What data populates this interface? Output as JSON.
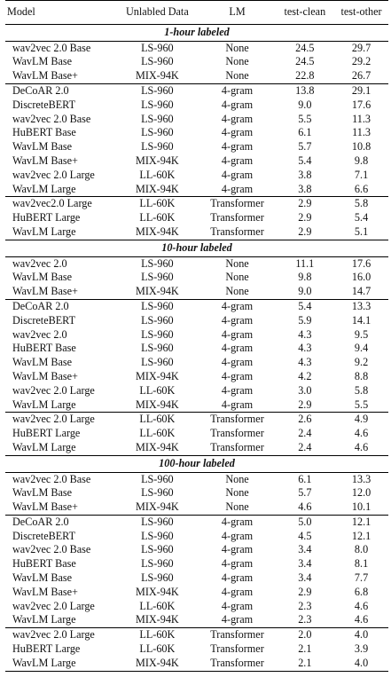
{
  "columns": {
    "model": "Model",
    "data": "Unlabled Data",
    "lm": "LM",
    "clean": "test-clean",
    "other": "test-other"
  },
  "sections": [
    {
      "title": "1-hour labeled",
      "groups": [
        [
          {
            "model": "wav2vec 2.0 Base",
            "data": "LS-960",
            "lm": "None",
            "clean": "24.5",
            "other": "29.7"
          },
          {
            "model": "WavLM Base",
            "data": "LS-960",
            "lm": "None",
            "clean": "24.5",
            "other": "29.2"
          },
          {
            "model": "WavLM Base+",
            "data": "MIX-94K",
            "lm": "None",
            "clean": "22.8",
            "other": "26.7"
          }
        ],
        [
          {
            "model": "DeCoAR 2.0",
            "data": "LS-960",
            "lm": "4-gram",
            "clean": "13.8",
            "other": "29.1"
          },
          {
            "model": "DiscreteBERT",
            "data": "LS-960",
            "lm": "4-gram",
            "clean": "9.0",
            "other": "17.6"
          },
          {
            "model": "wav2vec 2.0 Base",
            "data": "LS-960",
            "lm": "4-gram",
            "clean": "5.5",
            "other": "11.3"
          },
          {
            "model": "HuBERT Base",
            "data": "LS-960",
            "lm": "4-gram",
            "clean": "6.1",
            "other": "11.3"
          },
          {
            "model": "WavLM Base",
            "data": "LS-960",
            "lm": "4-gram",
            "clean": "5.7",
            "other": "10.8"
          },
          {
            "model": "WavLM Base+",
            "data": "MIX-94K",
            "lm": "4-gram",
            "clean": "5.4",
            "other": "9.8"
          },
          {
            "model": "wav2vec 2.0 Large",
            "data": "LL-60K",
            "lm": "4-gram",
            "clean": "3.8",
            "other": "7.1"
          },
          {
            "model": "WavLM Large",
            "data": "MIX-94K",
            "lm": "4-gram",
            "clean": "3.8",
            "other": "6.6"
          }
        ],
        [
          {
            "model": "wav2vec2.0 Large",
            "data": "LL-60K",
            "lm": "Transformer",
            "clean": "2.9",
            "other": "5.8"
          },
          {
            "model": "HuBERT Large",
            "data": "LL-60K",
            "lm": "Transformer",
            "clean": "2.9",
            "other": "5.4"
          },
          {
            "model": "WavLM Large",
            "data": "MIX-94K",
            "lm": "Transformer",
            "clean": "2.9",
            "other": "5.1"
          }
        ]
      ]
    },
    {
      "title": "10-hour labeled",
      "groups": [
        [
          {
            "model": "wav2vec 2.0",
            "data": "LS-960",
            "lm": "None",
            "clean": "11.1",
            "other": "17.6"
          },
          {
            "model": "WavLM Base",
            "data": "LS-960",
            "lm": "None",
            "clean": "9.8",
            "other": "16.0"
          },
          {
            "model": "WavLM Base+",
            "data": "MIX-94K",
            "lm": "None",
            "clean": "9.0",
            "other": "14.7"
          }
        ],
        [
          {
            "model": "DeCoAR 2.0",
            "data": "LS-960",
            "lm": "4-gram",
            "clean": "5.4",
            "other": "13.3"
          },
          {
            "model": "DiscreteBERT",
            "data": "LS-960",
            "lm": "4-gram",
            "clean": "5.9",
            "other": "14.1"
          },
          {
            "model": "wav2vec 2.0",
            "data": "LS-960",
            "lm": "4-gram",
            "clean": "4.3",
            "other": "9.5"
          },
          {
            "model": "HuBERT Base",
            "data": "LS-960",
            "lm": "4-gram",
            "clean": "4.3",
            "other": "9.4"
          },
          {
            "model": "WavLM Base",
            "data": "LS-960",
            "lm": "4-gram",
            "clean": "4.3",
            "other": "9.2"
          },
          {
            "model": "WavLM Base+",
            "data": "MIX-94K",
            "lm": "4-gram",
            "clean": "4.2",
            "other": "8.8"
          },
          {
            "model": "wav2vec 2.0 Large",
            "data": "LL-60K",
            "lm": "4-gram",
            "clean": "3.0",
            "other": "5.8"
          },
          {
            "model": "WavLM Large",
            "data": "MIX-94K",
            "lm": "4-gram",
            "clean": "2.9",
            "other": "5.5"
          }
        ],
        [
          {
            "model": "wav2vec 2.0 Large",
            "data": "LL-60K",
            "lm": "Transformer",
            "clean": "2.6",
            "other": "4.9"
          },
          {
            "model": "HuBERT Large",
            "data": "LL-60K",
            "lm": "Transformer",
            "clean": "2.4",
            "other": "4.6"
          },
          {
            "model": "WavLM Large",
            "data": "MIX-94K",
            "lm": "Transformer",
            "clean": "2.4",
            "other": "4.6"
          }
        ]
      ]
    },
    {
      "title": "100-hour labeled",
      "groups": [
        [
          {
            "model": "wav2vec 2.0 Base",
            "data": "LS-960",
            "lm": "None",
            "clean": "6.1",
            "other": "13.3"
          },
          {
            "model": "WavLM Base",
            "data": "LS-960",
            "lm": "None",
            "clean": "5.7",
            "other": "12.0"
          },
          {
            "model": "WavLM Base+",
            "data": "MIX-94K",
            "lm": "None",
            "clean": "4.6",
            "other": "10.1"
          }
        ],
        [
          {
            "model": "DeCoAR 2.0",
            "data": "LS-960",
            "lm": "4-gram",
            "clean": "5.0",
            "other": "12.1"
          },
          {
            "model": "DiscreteBERT",
            "data": "LS-960",
            "lm": "4-gram",
            "clean": "4.5",
            "other": "12.1"
          },
          {
            "model": "wav2vec 2.0 Base",
            "data": "LS-960",
            "lm": "4-gram",
            "clean": "3.4",
            "other": "8.0"
          },
          {
            "model": "HuBERT Base",
            "data": "LS-960",
            "lm": "4-gram",
            "clean": "3.4",
            "other": "8.1"
          },
          {
            "model": "WavLM Base",
            "data": "LS-960",
            "lm": "4-gram",
            "clean": "3.4",
            "other": "7.7"
          },
          {
            "model": "WavLM Base+",
            "data": "MIX-94K",
            "lm": "4-gram",
            "clean": "2.9",
            "other": "6.8"
          },
          {
            "model": "wav2vec 2.0 Large",
            "data": "LL-60K",
            "lm": "4-gram",
            "clean": "2.3",
            "other": "4.6"
          },
          {
            "model": "WavLM Large",
            "data": "MIX-94K",
            "lm": "4-gram",
            "clean": "2.3",
            "other": "4.6"
          }
        ],
        [
          {
            "model": "wav2vec 2.0 Large",
            "data": "LL-60K",
            "lm": "Transformer",
            "clean": "2.0",
            "other": "4.0"
          },
          {
            "model": "HuBERT Large",
            "data": "LL-60K",
            "lm": "Transformer",
            "clean": "2.1",
            "other": "3.9"
          },
          {
            "model": "WavLM Large",
            "data": "MIX-94K",
            "lm": "Transformer",
            "clean": "2.1",
            "other": "4.0"
          }
        ]
      ]
    }
  ]
}
